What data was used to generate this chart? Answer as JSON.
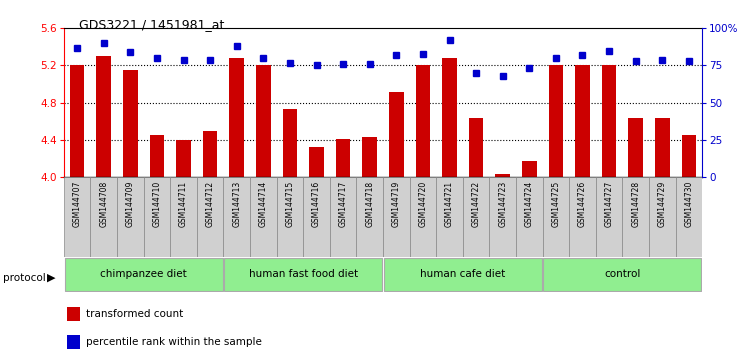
{
  "title": "GDS3221 / 1451981_at",
  "samples": [
    "GSM144707",
    "GSM144708",
    "GSM144709",
    "GSM144710",
    "GSM144711",
    "GSM144712",
    "GSM144713",
    "GSM144714",
    "GSM144715",
    "GSM144716",
    "GSM144717",
    "GSM144718",
    "GSM144719",
    "GSM144720",
    "GSM144721",
    "GSM144722",
    "GSM144723",
    "GSM144724",
    "GSM144725",
    "GSM144726",
    "GSM144727",
    "GSM144728",
    "GSM144729",
    "GSM144730"
  ],
  "bar_values": [
    5.2,
    5.3,
    5.15,
    4.45,
    4.4,
    4.5,
    5.28,
    5.2,
    4.73,
    4.32,
    4.41,
    4.43,
    4.92,
    5.2,
    5.28,
    4.63,
    4.03,
    4.17,
    5.2,
    5.2,
    5.2,
    4.63,
    4.63,
    4.45
  ],
  "percentile_values": [
    87,
    90,
    84,
    80,
    79,
    79,
    88,
    80,
    77,
    75,
    76,
    76,
    82,
    83,
    92,
    70,
    68,
    73,
    80,
    82,
    85,
    78,
    79,
    78
  ],
  "groups": [
    {
      "label": "chimpanzee diet",
      "start": 0,
      "end": 6
    },
    {
      "label": "human fast food diet",
      "start": 6,
      "end": 12
    },
    {
      "label": "human cafe diet",
      "start": 12,
      "end": 18
    },
    {
      "label": "control",
      "start": 18,
      "end": 24
    }
  ],
  "ylim_left": [
    4.0,
    5.6
  ],
  "ylim_right": [
    0,
    100
  ],
  "bar_color": "#cc0000",
  "dot_color": "#0000cc",
  "group_color": "#90ee90",
  "yticks_left": [
    4.0,
    4.4,
    4.8,
    5.2,
    5.6
  ],
  "yticks_right": [
    0,
    25,
    50,
    75,
    100
  ],
  "grid_lines": [
    4.4,
    4.8,
    5.2
  ],
  "tick_bg_color": "#d0d0d0"
}
